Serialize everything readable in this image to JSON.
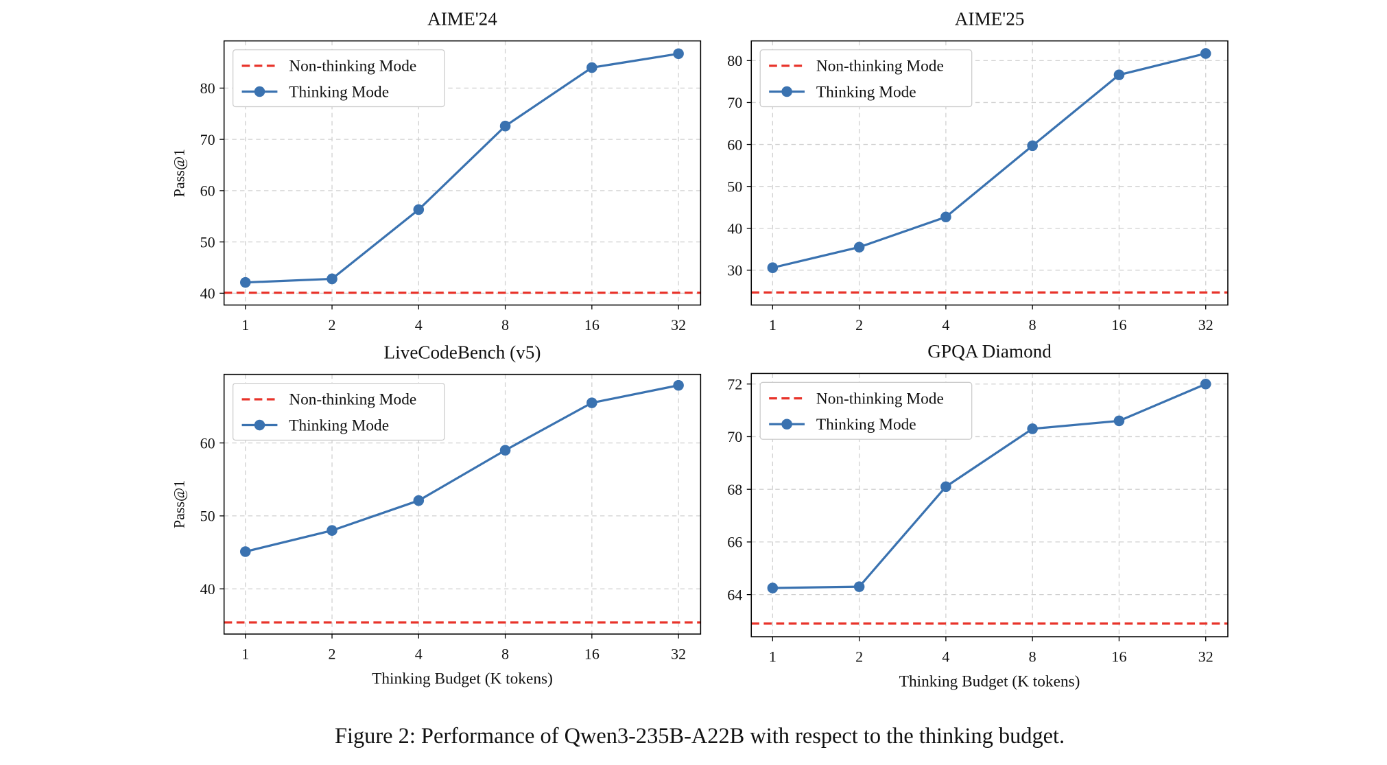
{
  "caption": "Figure 2: Performance of Qwen3-235B-A22B with respect to the thinking budget.",
  "chart_data": [
    {
      "type": "line",
      "title": "AIME'24",
      "ylabel": "Pass@1",
      "xscale": "log2",
      "grid": true,
      "legend": "upper left",
      "x": [
        1,
        2,
        4,
        8,
        16,
        32
      ],
      "xlim": [
        0.843,
        38.2
      ],
      "xticks": [
        1,
        2,
        4,
        8,
        16,
        32
      ],
      "ylim": [
        37.7,
        89.2
      ],
      "yticks": [
        40,
        50,
        60,
        70,
        80
      ],
      "series": [
        {
          "name": "Non-thinking Mode",
          "color": "#e8332a",
          "style": "dashed",
          "hline": 40.1
        },
        {
          "name": "Thinking Mode",
          "color": "#3a72b0",
          "style": "solid",
          "values": [
            42.1,
            42.8,
            56.3,
            72.6,
            84.0,
            86.7
          ]
        }
      ]
    },
    {
      "type": "line",
      "title": "AIME'25",
      "xscale": "log2",
      "grid": true,
      "legend": "upper left",
      "x": [
        1,
        2,
        4,
        8,
        16,
        32
      ],
      "xlim": [
        0.843,
        38.2
      ],
      "xticks": [
        1,
        2,
        4,
        8,
        16,
        32
      ],
      "ylim": [
        21.7,
        84.7
      ],
      "yticks": [
        30,
        40,
        50,
        60,
        70,
        80
      ],
      "series": [
        {
          "name": "Non-thinking Mode",
          "color": "#e8332a",
          "style": "dashed",
          "hline": 24.7
        },
        {
          "name": "Thinking Mode",
          "color": "#3a72b0",
          "style": "solid",
          "values": [
            30.6,
            35.5,
            42.7,
            59.7,
            76.6,
            81.7
          ]
        }
      ]
    },
    {
      "type": "line",
      "title": "LiveCodeBench (v5)",
      "ylabel": "Pass@1",
      "xlabel": "Thinking Budget (K tokens)",
      "xscale": "log2",
      "grid": true,
      "legend": "upper left",
      "x": [
        1,
        2,
        4,
        8,
        16,
        32
      ],
      "xlim": [
        0.843,
        38.2
      ],
      "xticks": [
        1,
        2,
        4,
        8,
        16,
        32
      ],
      "ylim": [
        33.8,
        69.4
      ],
      "yticks": [
        40,
        50,
        60
      ],
      "series": [
        {
          "name": "Non-thinking Mode",
          "color": "#e8332a",
          "style": "dashed",
          "hline": 35.4
        },
        {
          "name": "Thinking Mode",
          "color": "#3a72b0",
          "style": "solid",
          "values": [
            45.1,
            48.0,
            52.1,
            59.0,
            65.5,
            67.9
          ]
        }
      ]
    },
    {
      "type": "line",
      "title": "GPQA Diamond",
      "xlabel": "Thinking Budget (K tokens)",
      "xscale": "log2",
      "grid": true,
      "legend": "upper left",
      "x": [
        1,
        2,
        4,
        8,
        16,
        32
      ],
      "xlim": [
        0.843,
        38.2
      ],
      "xticks": [
        1,
        2,
        4,
        8,
        16,
        32
      ],
      "ylim": [
        62.4,
        72.4
      ],
      "yticks": [
        64,
        66,
        68,
        70,
        72
      ],
      "series": [
        {
          "name": "Non-thinking Mode",
          "color": "#e8332a",
          "style": "dashed",
          "hline": 62.9
        },
        {
          "name": "Thinking Mode",
          "color": "#3a72b0",
          "style": "solid",
          "values": [
            64.25,
            64.3,
            68.1,
            70.3,
            70.6,
            72.0
          ]
        }
      ]
    }
  ]
}
